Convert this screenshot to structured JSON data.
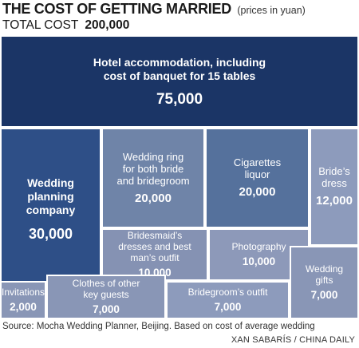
{
  "header": {
    "title": "THE COST OF GETTING MARRIED",
    "title_note": "(prices in yuan)",
    "total_label": "TOTAL COST",
    "total_value": "200,000"
  },
  "chart_data": {
    "type": "treemap",
    "title": "THE COST OF GETTING MARRIED",
    "unit": "yuan",
    "total": 200000,
    "items": [
      {
        "label": "Hotel accommodation, including cost of banquet for 15 tables",
        "value": 75000,
        "value_text": "75,000",
        "color": "#1b3566"
      },
      {
        "label": "Wedding planning company",
        "value": 30000,
        "value_text": "30,000",
        "color": "#2e4f87"
      },
      {
        "label": "Wedding ring for both bride and bridegroom",
        "value": 20000,
        "value_text": "20,000",
        "color": "#6f84a8"
      },
      {
        "label": "Cigarettes liquor",
        "value": 20000,
        "value_text": "20,000",
        "color": "#55719c"
      },
      {
        "label": "Bride's dress",
        "value": 12000,
        "value_text": "12,000",
        "color": "#8d9bbc"
      },
      {
        "label": "Bridesmaid's dresses and best man's outfit",
        "value": 10000,
        "value_text": "10,000",
        "color": "#8592b3"
      },
      {
        "label": "Photography",
        "value": 10000,
        "value_text": "10,000",
        "color": "#8d99b9"
      },
      {
        "label": "Invitations",
        "value": 2000,
        "value_text": "2,000",
        "color": "#8996b6"
      },
      {
        "label": "Clothes of other key guests",
        "value": 7000,
        "value_text": "7,000",
        "color": "#8996b6"
      },
      {
        "label": "Bridegroom's outfit",
        "value": 7000,
        "value_text": "7,000",
        "color": "#8d9bbc"
      },
      {
        "label": "Wedding gifts",
        "value": 7000,
        "value_text": "7,000",
        "color": "#8996b6"
      }
    ]
  },
  "footer": {
    "source": "Source: Mocha Wedding Planner, Beijing. Based on cost of average wedding",
    "credit": "XAN SABARÍS / CHINA DAILY"
  }
}
